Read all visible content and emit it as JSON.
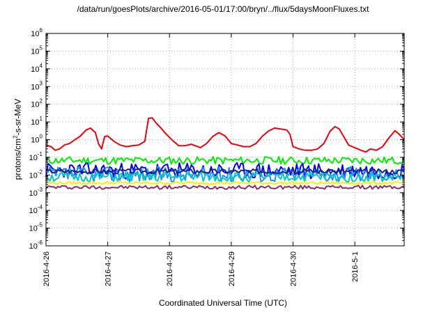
{
  "title": "/data/run/goesPlots/archive/2016-05-01/17:00/bryn/../flux/5daysMoonFluxes.txt",
  "chart_data": {
    "type": "line",
    "xlabel": "Coordinated Universal Time (UTC)",
    "ylabel_parts": {
      "base": "protons/cm",
      "exp": "2",
      "rest": "-s-sr-MeV"
    },
    "yscale": "log",
    "ylim": [
      1e-06,
      1000000
    ],
    "xlim_days": [
      0,
      5.8
    ],
    "grid": true,
    "x_ticks": [
      {
        "day": 0,
        "label": "2016-4-26"
      },
      {
        "day": 1,
        "label": "2016-4-27"
      },
      {
        "day": 2,
        "label": "2016-4-28"
      },
      {
        "day": 3,
        "label": "2016-4-29"
      },
      {
        "day": 4,
        "label": "2016-4-30"
      },
      {
        "day": 5,
        "label": "2016-5-1"
      }
    ],
    "y_ticks": [
      {
        "base": "10",
        "exp": "6",
        "value": 1000000
      },
      {
        "base": "10",
        "exp": "5",
        "value": 100000
      },
      {
        "base": "10",
        "exp": "4",
        "value": 10000
      },
      {
        "base": "10",
        "exp": "3",
        "value": 1000
      },
      {
        "base": "10",
        "exp": "2",
        "value": 100
      },
      {
        "base": "10",
        "exp": "1",
        "value": 10
      },
      {
        "base": "10",
        "exp": "0",
        "value": 1
      },
      {
        "base": "10",
        "exp": "-1",
        "value": 0.1
      },
      {
        "base": "10",
        "exp": "-2",
        "value": 0.01
      },
      {
        "base": "10",
        "exp": "-3",
        "value": 0.001
      },
      {
        "base": "10",
        "exp": "-4",
        "value": 0.0001
      },
      {
        "base": "10",
        "exp": "-5",
        "value": 1e-05
      },
      {
        "base": "10",
        "exp": "-6",
        "value": 1e-06
      }
    ],
    "series": [
      {
        "color": "#e8000b",
        "stroke": 2,
        "points": [
          [
            0,
            0.5
          ],
          [
            0.08,
            0.4
          ],
          [
            0.15,
            0.25
          ],
          [
            0.22,
            0.3
          ],
          [
            0.3,
            0.5
          ],
          [
            0.38,
            0.6
          ],
          [
            0.45,
            0.9
          ],
          [
            0.55,
            1.5
          ],
          [
            0.65,
            3.5
          ],
          [
            0.72,
            4.5
          ],
          [
            0.8,
            2.5
          ],
          [
            0.85,
            0.6
          ],
          [
            0.9,
            0.3
          ],
          [
            0.95,
            1.5
          ],
          [
            1.0,
            1.6
          ],
          [
            1.1,
            0.8
          ],
          [
            1.2,
            0.5
          ],
          [
            1.3,
            0.4
          ],
          [
            1.4,
            0.45
          ],
          [
            1.5,
            0.5
          ],
          [
            1.6,
            0.8
          ],
          [
            1.66,
            16
          ],
          [
            1.72,
            17
          ],
          [
            1.78,
            9
          ],
          [
            1.85,
            5
          ],
          [
            1.95,
            2
          ],
          [
            2.05,
            0.9
          ],
          [
            2.15,
            0.45
          ],
          [
            2.25,
            0.45
          ],
          [
            2.35,
            0.55
          ],
          [
            2.42,
            0.45
          ],
          [
            2.5,
            0.35
          ],
          [
            2.6,
            0.6
          ],
          [
            2.7,
            1.5
          ],
          [
            2.8,
            2.5
          ],
          [
            2.9,
            1.6
          ],
          [
            3.0,
            0.6
          ],
          [
            3.1,
            0.5
          ],
          [
            3.2,
            0.4
          ],
          [
            3.3,
            0.4
          ],
          [
            3.4,
            0.6
          ],
          [
            3.5,
            1.5
          ],
          [
            3.6,
            3.0
          ],
          [
            3.7,
            4.5
          ],
          [
            3.8,
            4.0
          ],
          [
            3.9,
            3.5
          ],
          [
            3.95,
            2
          ],
          [
            4.0,
            0.4
          ],
          [
            4.1,
            0.3
          ],
          [
            4.2,
            0.25
          ],
          [
            4.3,
            0.25
          ],
          [
            4.4,
            0.3
          ],
          [
            4.5,
            0.6
          ],
          [
            4.6,
            3
          ],
          [
            4.68,
            5.5
          ],
          [
            4.75,
            4
          ],
          [
            4.82,
            1.5
          ],
          [
            4.9,
            0.5
          ],
          [
            5.0,
            0.35
          ],
          [
            5.1,
            0.25
          ],
          [
            5.18,
            0.2
          ],
          [
            5.25,
            0.3
          ],
          [
            5.35,
            0.25
          ],
          [
            5.45,
            0.4
          ],
          [
            5.55,
            1.2
          ],
          [
            5.65,
            3.2
          ],
          [
            5.72,
            2
          ],
          [
            5.8,
            1.0
          ]
        ]
      },
      {
        "color": "#00ee00",
        "stroke": 2,
        "min": 0.04,
        "max": 0.11,
        "seed": 11
      },
      {
        "color": "#0000ff",
        "stroke": 2,
        "min": 0.006,
        "max": 0.05,
        "seed": 23
      },
      {
        "color": "#1e90ff",
        "stroke": 2,
        "min": 0.004,
        "max": 0.03,
        "seed": 37
      },
      {
        "color": "#00c8c8",
        "stroke": 2,
        "min": 0.004,
        "max": 0.015,
        "seed": 51
      },
      {
        "color": "#1a237e",
        "stroke": 2,
        "min": 0.012,
        "max": 0.022,
        "seed": 67
      },
      {
        "color": "#ffee00",
        "stroke": 2,
        "min": 0.003,
        "max": 0.0042,
        "seed": 79
      },
      {
        "color": "#8b2a6b",
        "stroke": 2,
        "min": 0.0016,
        "max": 0.0026,
        "seed": 97
      }
    ]
  }
}
